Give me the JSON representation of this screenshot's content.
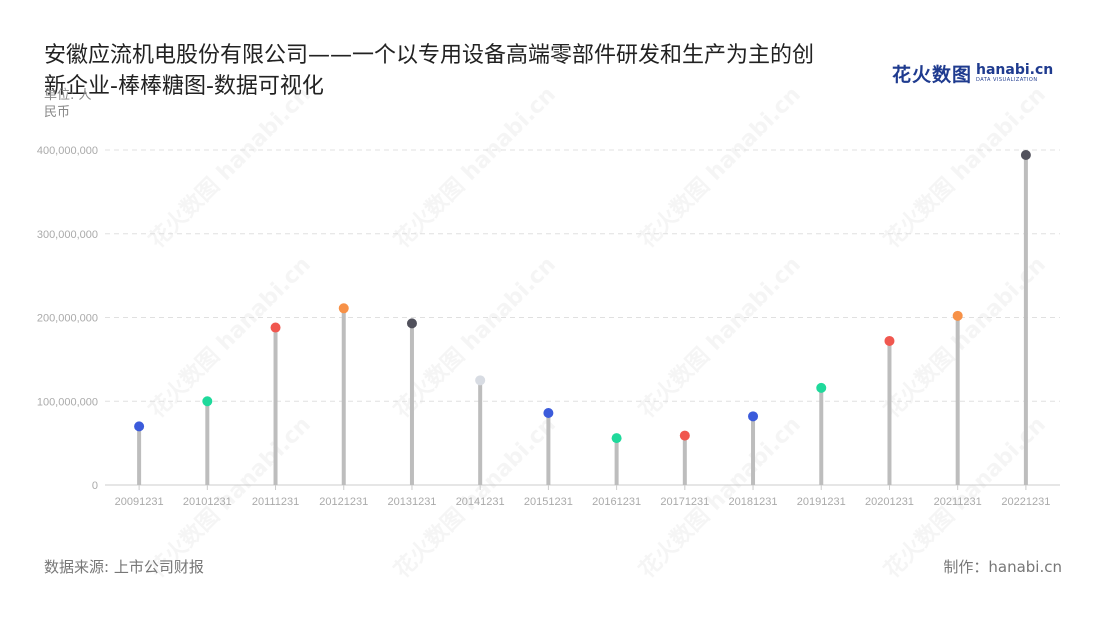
{
  "title": "安徽应流机电股份有限公司——一个以专用设备高端零部件研发和生产为主的创新企业-棒棒糖图-数据可视化",
  "unit_label": "单位: 人民币",
  "logo": {
    "cn": "花火数图",
    "en": "hanabi.cn",
    "en_sub": "DATA VISUALIZATION"
  },
  "watermark_text": "花火数图 hanabi.cn",
  "source": "数据来源: 上市公司财报",
  "credit": "制作：hanabi.cn",
  "chart_data": {
    "type": "lollipop",
    "title": "安徽应流机电股份有限公司——一个以专用设备高端零部件研发和生产为主的创新企业-棒棒糖图-数据可视化",
    "ylabel": "单位: 人民币",
    "ylim": [
      0,
      400000000
    ],
    "yticks": [
      0,
      100000000,
      200000000,
      300000000,
      400000000
    ],
    "ytick_labels": [
      "0",
      "100,000,000",
      "200,000,000",
      "300,000,000",
      "400,000,000"
    ],
    "grid": true,
    "categories": [
      "20091231",
      "20101231",
      "20111231",
      "20121231",
      "20131231",
      "20141231",
      "20151231",
      "20161231",
      "20171231",
      "20181231",
      "20191231",
      "20201231",
      "20211231",
      "20221231"
    ],
    "values": [
      70000000,
      100000000,
      188000000,
      211000000,
      193000000,
      125000000,
      86000000,
      56000000,
      59000000,
      82000000,
      116000000,
      172000000,
      202000000,
      394000000
    ],
    "stem_color": "#bdbdbd",
    "colors": [
      "#3b5bdb",
      "#1fd99b",
      "#f0574f",
      "#f79147",
      "#51515c",
      "#d8dce3",
      "#3b5bdb",
      "#1fd99b",
      "#f0574f",
      "#3b5bdb",
      "#1fd99b",
      "#f0574f",
      "#f79147",
      "#51515c"
    ]
  }
}
